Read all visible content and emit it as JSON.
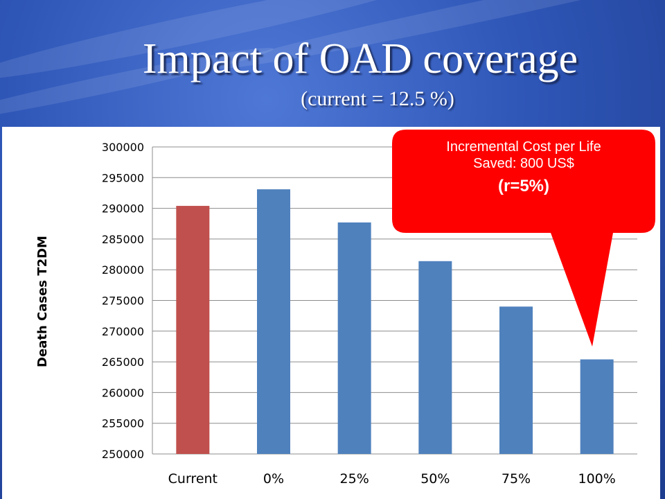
{
  "slide": {
    "title": "Impact of OAD coverage",
    "subtitle": "(current = 12.5 %)"
  },
  "callout": {
    "line1": "Incremental Cost per Life",
    "line2": "Saved: 800 US$",
    "line3": "(r=5%)",
    "color": "#ff0000"
  },
  "chart_data": {
    "type": "bar",
    "ylabel": "Death Cases T2DM",
    "xlabel": "",
    "categories": [
      "Current",
      "0%",
      "25%",
      "50%",
      "75%",
      "100%"
    ],
    "values": [
      290400,
      293100,
      287700,
      281400,
      274000,
      265400
    ],
    "bar_colors": [
      "#c0504d",
      "#4f81bd",
      "#4f81bd",
      "#4f81bd",
      "#4f81bd",
      "#4f81bd"
    ],
    "ylim": [
      250000,
      300000
    ],
    "yticks": [
      "300000",
      "295000",
      "290000",
      "285000",
      "280000",
      "275000",
      "270000",
      "265000",
      "260000",
      "255000",
      "250000"
    ],
    "grid": true,
    "legend": "none"
  }
}
